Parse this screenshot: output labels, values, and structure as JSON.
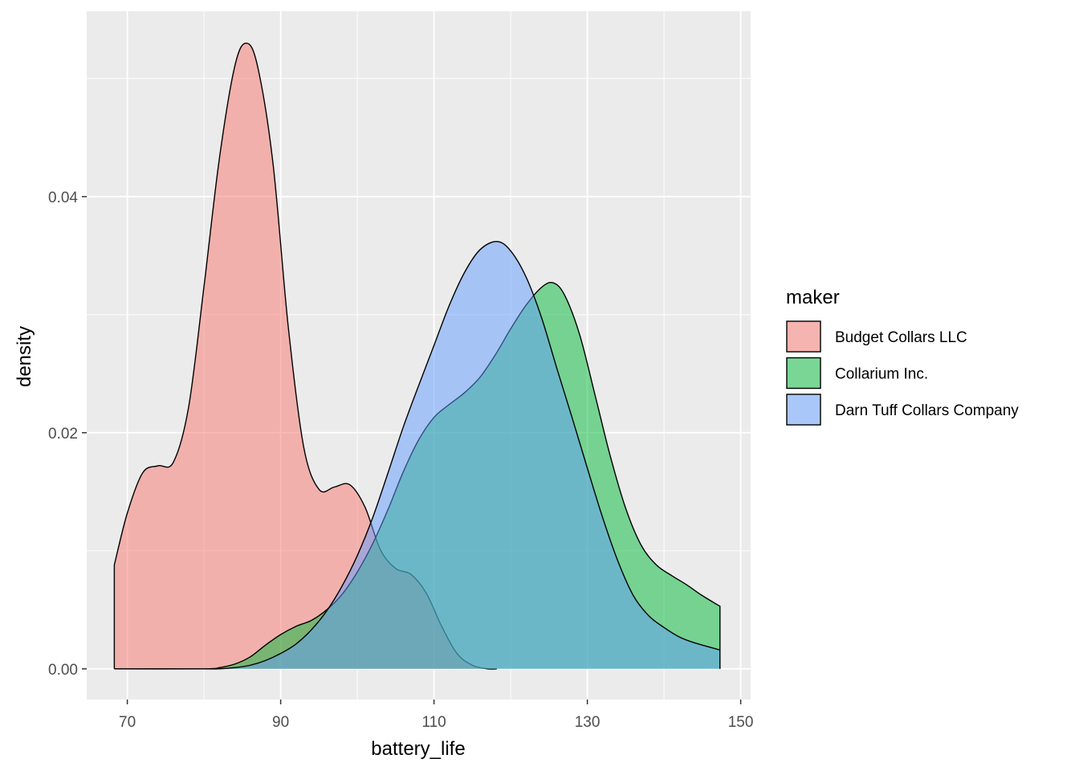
{
  "chart_data": {
    "type": "area",
    "title": "",
    "xlabel": "battery_life",
    "ylabel": "density",
    "xlim": [
      64.7,
      151.3
    ],
    "ylim": [
      -0.0026,
      0.0557
    ],
    "x_ticks": [
      70,
      90,
      110,
      130,
      150
    ],
    "x_tick_labels": [
      "70",
      "90",
      "110",
      "130",
      "150"
    ],
    "y_ticks": [
      0.0,
      0.02,
      0.04
    ],
    "y_tick_labels": [
      "0.00",
      "0.02",
      "0.04"
    ],
    "grid": true,
    "legend_position": "right",
    "legend_title": "maker",
    "series": [
      {
        "name": "Budget Collars LLC",
        "color": "#F8766D",
        "x": [
          68.3,
          70,
          72,
          74,
          76,
          78,
          80,
          82,
          84,
          85.5,
          87,
          89,
          91,
          93,
          95,
          97,
          99,
          101,
          103,
          105,
          107,
          109,
          111,
          113,
          115,
          117,
          118.2
        ],
        "y": [
          0.0088,
          0.0132,
          0.0166,
          0.0172,
          0.0175,
          0.0222,
          0.0324,
          0.0432,
          0.051,
          0.053,
          0.051,
          0.0428,
          0.0289,
          0.0188,
          0.0152,
          0.0154,
          0.0156,
          0.0137,
          0.0101,
          0.0085,
          0.008,
          0.0064,
          0.0036,
          0.0013,
          0.0003,
          0.0,
          0.0
        ]
      },
      {
        "name": "Collarium Inc.",
        "color": "#00BA38",
        "x": [
          68.3,
          80,
          82,
          84,
          86,
          88,
          90,
          92,
          94,
          96,
          98,
          100,
          102,
          104,
          106,
          108,
          110,
          112,
          114,
          116,
          118,
          120,
          122,
          124,
          125.5,
          127,
          129,
          131,
          133,
          135,
          137,
          139,
          141,
          143,
          145,
          147.3
        ],
        "y": [
          0.0,
          0.0,
          0.0001,
          0.0004,
          0.001,
          0.002,
          0.0029,
          0.0036,
          0.0041,
          0.005,
          0.0063,
          0.0082,
          0.0106,
          0.0135,
          0.0167,
          0.0194,
          0.0213,
          0.0224,
          0.0234,
          0.0247,
          0.0266,
          0.0288,
          0.0308,
          0.0323,
          0.0327,
          0.0317,
          0.0283,
          0.0232,
          0.018,
          0.0136,
          0.0105,
          0.0088,
          0.0079,
          0.0071,
          0.0062,
          0.0053
        ]
      },
      {
        "name": "Darn Tuff Collars Company",
        "color": "#619CFF",
        "x": [
          68.3,
          80,
          82,
          84,
          86,
          88,
          90,
          92,
          94,
          96,
          98,
          100,
          102,
          104,
          106,
          108,
          110,
          112,
          114,
          116,
          118.2,
          120,
          122,
          124,
          126,
          128,
          130,
          132,
          134,
          136,
          138,
          140,
          142,
          144,
          147.3
        ],
        "y": [
          0.0,
          0.0,
          0.0,
          0.0001,
          0.0003,
          0.0007,
          0.0013,
          0.0021,
          0.0033,
          0.0049,
          0.007,
          0.0096,
          0.0128,
          0.0166,
          0.0205,
          0.024,
          0.0274,
          0.0308,
          0.0336,
          0.0355,
          0.0362,
          0.0354,
          0.0332,
          0.0298,
          0.0255,
          0.0213,
          0.017,
          0.0128,
          0.0091,
          0.0062,
          0.0045,
          0.0035,
          0.0027,
          0.0022,
          0.0016
        ]
      }
    ]
  }
}
